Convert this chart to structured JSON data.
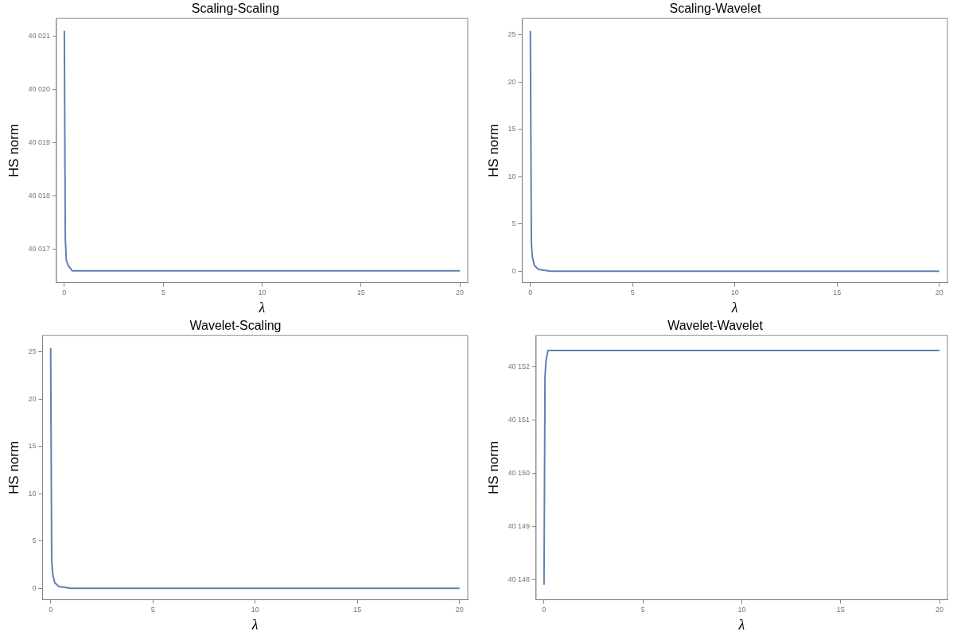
{
  "chart_data": [
    {
      "type": "line",
      "title": "Scaling-Scaling",
      "xlabel": "λ",
      "ylabel": "HS norm",
      "series": [
        {
          "color": "#5e81b5",
          "x": [
            0,
            0.05,
            0.1,
            0.2,
            0.4,
            1,
            5,
            10,
            20
          ],
          "values": [
            40021.1,
            40017.2,
            40016.8,
            40016.7,
            40016.6,
            40016.6,
            40016.6,
            40016.6,
            40016.6
          ]
        }
      ],
      "xlim": [
        -0.4,
        20.4
      ],
      "xticks": [
        0,
        5,
        10,
        15,
        20
      ],
      "ylim": [
        40016.38,
        40021.33
      ],
      "yticks": [
        {
          "value": 40017,
          "label": "40 017"
        },
        {
          "value": 40018,
          "label": "40 018"
        },
        {
          "value": 40019,
          "label": "40 019"
        },
        {
          "value": 40020,
          "label": "40 020"
        },
        {
          "value": 40021,
          "label": "40 021"
        }
      ],
      "legend": false,
      "marker": "none",
      "line_style": "solid"
    },
    {
      "type": "line",
      "title": "Scaling-Wavelet",
      "xlabel": "λ",
      "ylabel": "HS norm",
      "series": [
        {
          "color": "#5e81b5",
          "x": [
            0,
            0.05,
            0.1,
            0.2,
            0.4,
            1,
            5,
            10,
            20
          ],
          "values": [
            25.4,
            3,
            1.5,
            0.6,
            0.2,
            0,
            0,
            0,
            0
          ]
        }
      ],
      "xlim": [
        -0.4,
        20.4
      ],
      "xticks": [
        0,
        5,
        10,
        15,
        20
      ],
      "ylim": [
        -1.2,
        26.7
      ],
      "yticks": [
        0,
        5,
        10,
        15,
        20,
        25
      ],
      "legend": false,
      "marker": "none",
      "line_style": "solid"
    },
    {
      "type": "line",
      "title": "Wavelet-Scaling",
      "xlabel": "λ",
      "ylabel": "HS norm",
      "series": [
        {
          "color": "#5e81b5",
          "x": [
            0,
            0.05,
            0.1,
            0.2,
            0.4,
            1,
            5,
            10,
            20
          ],
          "values": [
            25.4,
            3,
            1.5,
            0.6,
            0.2,
            0,
            0,
            0,
            0
          ]
        }
      ],
      "xlim": [
        -0.4,
        20.4
      ],
      "xticks": [
        0,
        5,
        10,
        15,
        20
      ],
      "ylim": [
        -1.2,
        26.7
      ],
      "yticks": [
        0,
        5,
        10,
        15,
        20,
        25
      ],
      "legend": false,
      "marker": "none",
      "line_style": "solid"
    },
    {
      "type": "line",
      "title": "Wavelet-Wavelet",
      "xlabel": "λ",
      "ylabel": "HS norm",
      "series": [
        {
          "color": "#5e81b5",
          "x": [
            0,
            0.05,
            0.1,
            0.2,
            0.4,
            1,
            5,
            10,
            20
          ],
          "values": [
            40147.9,
            40151.8,
            40152.1,
            40152.3,
            40152.3,
            40152.3,
            40152.3,
            40152.3,
            40152.3
          ]
        }
      ],
      "xlim": [
        -0.4,
        20.4
      ],
      "xticks": [
        0,
        5,
        10,
        15,
        20
      ],
      "ylim": [
        40147.62,
        40152.58
      ],
      "yticks": [
        {
          "value": 40148,
          "label": "40 148"
        },
        {
          "value": 40149,
          "label": "40 149"
        },
        {
          "value": 40150,
          "label": "40 150"
        },
        {
          "value": 40151,
          "label": "40 151"
        },
        {
          "value": 40152,
          "label": "40 152"
        }
      ],
      "legend": false,
      "marker": "none",
      "line_style": "solid"
    }
  ]
}
